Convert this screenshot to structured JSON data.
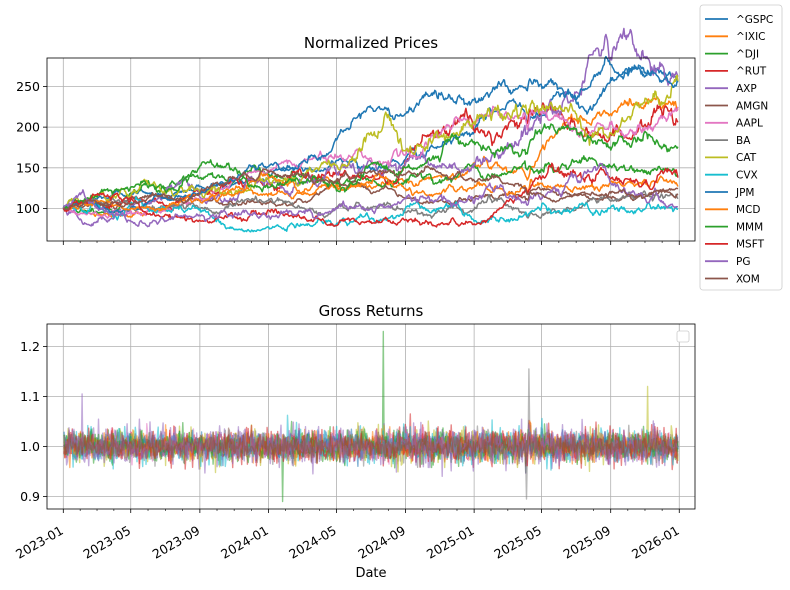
{
  "chart_data": [
    {
      "type": "line",
      "title": "Normalized Prices",
      "xlabel": "",
      "ylabel": "",
      "xlim": [
        "2022-12-03",
        "2026-01-29"
      ],
      "ylim": [
        60,
        285
      ],
      "yticks": [
        100,
        150,
        200,
        250
      ],
      "grid": true,
      "legend_position": "outside-right",
      "series": [
        {
          "name": "^GSPC",
          "color": "#1f77b4",
          "start": 100,
          "end": 258
        },
        {
          "name": "^IXIC",
          "color": "#ff7f0e",
          "start": 100,
          "end": 222
        },
        {
          "name": "^DJI",
          "color": "#2ca02c",
          "start": 100,
          "end": 140
        },
        {
          "name": "^RUT",
          "color": "#d62728",
          "start": 100,
          "end": 206
        },
        {
          "name": "AXP",
          "color": "#9467bd",
          "start": 100,
          "end": 262
        },
        {
          "name": "AMGN",
          "color": "#8c564b",
          "start": 100,
          "end": 124
        },
        {
          "name": "AAPL",
          "color": "#e377c2",
          "start": 100,
          "end": 225
        },
        {
          "name": "BA",
          "color": "#7f7f7f",
          "start": 100,
          "end": 112
        },
        {
          "name": "CAT",
          "color": "#bcbd22",
          "start": 100,
          "end": 256
        },
        {
          "name": "CVX",
          "color": "#17becf",
          "start": 100,
          "end": 99
        },
        {
          "name": "JPM",
          "color": "#1f77b4",
          "start": 100,
          "end": 255
        },
        {
          "name": "MCD",
          "color": "#ff7f0e",
          "start": 100,
          "end": 127
        },
        {
          "name": "MMM",
          "color": "#2ca02c",
          "start": 100,
          "end": 176
        },
        {
          "name": "MSFT",
          "color": "#d62728",
          "start": 100,
          "end": 138
        },
        {
          "name": "PG",
          "color": "#9467bd",
          "start": 100,
          "end": 102
        },
        {
          "name": "XOM",
          "color": "#8c564b",
          "start": 100,
          "end": 118
        }
      ]
    },
    {
      "type": "line",
      "title": "Gross Returns",
      "xlabel": "Date",
      "ylabel": "",
      "xlim": [
        "2022-12-03",
        "2026-01-29"
      ],
      "ylim": [
        0.875,
        1.245
      ],
      "yticks": [
        0.9,
        1.0,
        1.1,
        1.2
      ],
      "xticks": [
        "2023-01",
        "2023-05",
        "2023-09",
        "2024-01",
        "2024-05",
        "2024-09",
        "2025-01",
        "2025-05",
        "2025-09",
        "2026-01"
      ],
      "grid": true,
      "legend_position": "top-right (empty)",
      "notable_values": [
        1.23,
        1.155,
        1.12,
        1.105,
        0.89,
        0.895
      ],
      "value_range": [
        0.89,
        1.23
      ]
    }
  ]
}
